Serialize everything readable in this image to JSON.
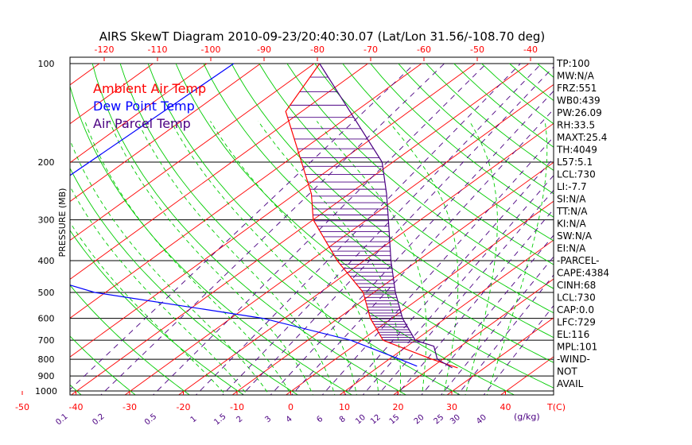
{
  "chart_data": {
    "type": "line",
    "title": "AIRS SkewT Diagram 2010-09-23/20:40:30.07 (Lat/Lon 31.56/-108.70 deg)",
    "ylabel": "PRESSURE (MB)",
    "xlabel": "T(C)",
    "mixing_ratio_unit": "(g/kg)",
    "pressure_levels": [
      100,
      200,
      300,
      400,
      500,
      600,
      700,
      800,
      900,
      1000
    ],
    "pressure_labels": [
      "100",
      "200",
      "300",
      "400",
      "500",
      "600",
      "700",
      "800",
      "900",
      "1000"
    ],
    "ylim": [
      1050,
      100
    ],
    "top_ticks": [
      -120,
      -110,
      -100,
      -90,
      -80,
      -70,
      -60,
      -50,
      -40
    ],
    "top_tick_labels": [
      "-120",
      "-110",
      "-100",
      "-90",
      "-80",
      "-70",
      "-60",
      "-50",
      "-40"
    ],
    "bottom_ticks": [
      -50,
      -40,
      -30,
      -20,
      -10,
      0,
      10,
      20,
      30,
      40
    ],
    "bottom_tick_labels": [
      "-50",
      "-40",
      "-30",
      "-20",
      "-10",
      "0",
      "10",
      "20",
      "30",
      "40"
    ],
    "mixing_ratios": [
      0.1,
      0.2,
      0.5,
      1,
      1.5,
      2,
      3,
      4,
      6,
      8,
      10,
      12,
      15,
      20,
      25,
      30,
      40
    ],
    "mixing_ratio_labels": [
      "0.1",
      "0.2",
      "0.5",
      "1",
      "1.5",
      "2",
      "3",
      "4",
      "6",
      "8",
      "10",
      "12",
      "15",
      "20",
      "25",
      "30",
      "40"
    ],
    "legend": [
      "Ambient Air Temp",
      "Dew Point Temp",
      "Air Parcel Temp"
    ],
    "legend_colors": [
      "#ff0000",
      "#0000ff",
      "#4b0082"
    ],
    "series": [
      {
        "name": "Ambient Air Temp",
        "color": "#ff0000",
        "points": [
          [
            100,
            -79
          ],
          [
            140,
            -73
          ],
          [
            200,
            -57
          ],
          [
            250,
            -47
          ],
          [
            300,
            -40
          ],
          [
            400,
            -25
          ],
          [
            500,
            -12
          ],
          [
            600,
            -4
          ],
          [
            700,
            4
          ],
          [
            800,
            18
          ],
          [
            850,
            25
          ]
        ]
      },
      {
        "name": "Dew Point Temp",
        "color": "#0000ff",
        "points": [
          [
            100,
            -95
          ],
          [
            250,
            -97
          ],
          [
            400,
            -90
          ],
          [
            500,
            -62
          ],
          [
            600,
            -24
          ],
          [
            700,
            -2
          ],
          [
            800,
            12
          ],
          [
            840,
            17
          ]
        ]
      },
      {
        "name": "Air Parcel Temp",
        "color": "#4b0082",
        "points": [
          [
            100,
            -79
          ],
          [
            200,
            -42
          ],
          [
            250,
            -33
          ],
          [
            300,
            -26
          ],
          [
            400,
            -15
          ],
          [
            500,
            -6
          ],
          [
            600,
            2
          ],
          [
            700,
            10
          ],
          [
            730,
            15
          ],
          [
            800,
            19
          ],
          [
            850,
            24
          ]
        ]
      }
    ],
    "indices": [
      "TP:100",
      "MW:N/A",
      "FRZ:551",
      "WB0:439",
      "PW:26.09",
      "RH:33.5",
      "MAXT:25.4",
      "TH:4049",
      "L57:5.1",
      "LCL:730",
      "LI:-7.7",
      "SI:N/A",
      "TT:N/A",
      "KI:N/A",
      "SW:N/A",
      "EI:N/A",
      "-PARCEL-",
      "CAPE:4384",
      "CINH:68",
      "LCL:730",
      "CAP:0.0",
      "LFC:729",
      "EL:116",
      "MPL:101",
      "-WIND-",
      "NOT",
      "AVAIL"
    ],
    "colors": {
      "isotherm": "#ff0000",
      "dry_adiabat": "#00cc00",
      "moist_adiabat": "#00cc00",
      "mixing_ratio": "#4b0082",
      "isobar": "#000000",
      "axis_text": "#ff0000",
      "mixing_text": "#4b0082"
    }
  }
}
